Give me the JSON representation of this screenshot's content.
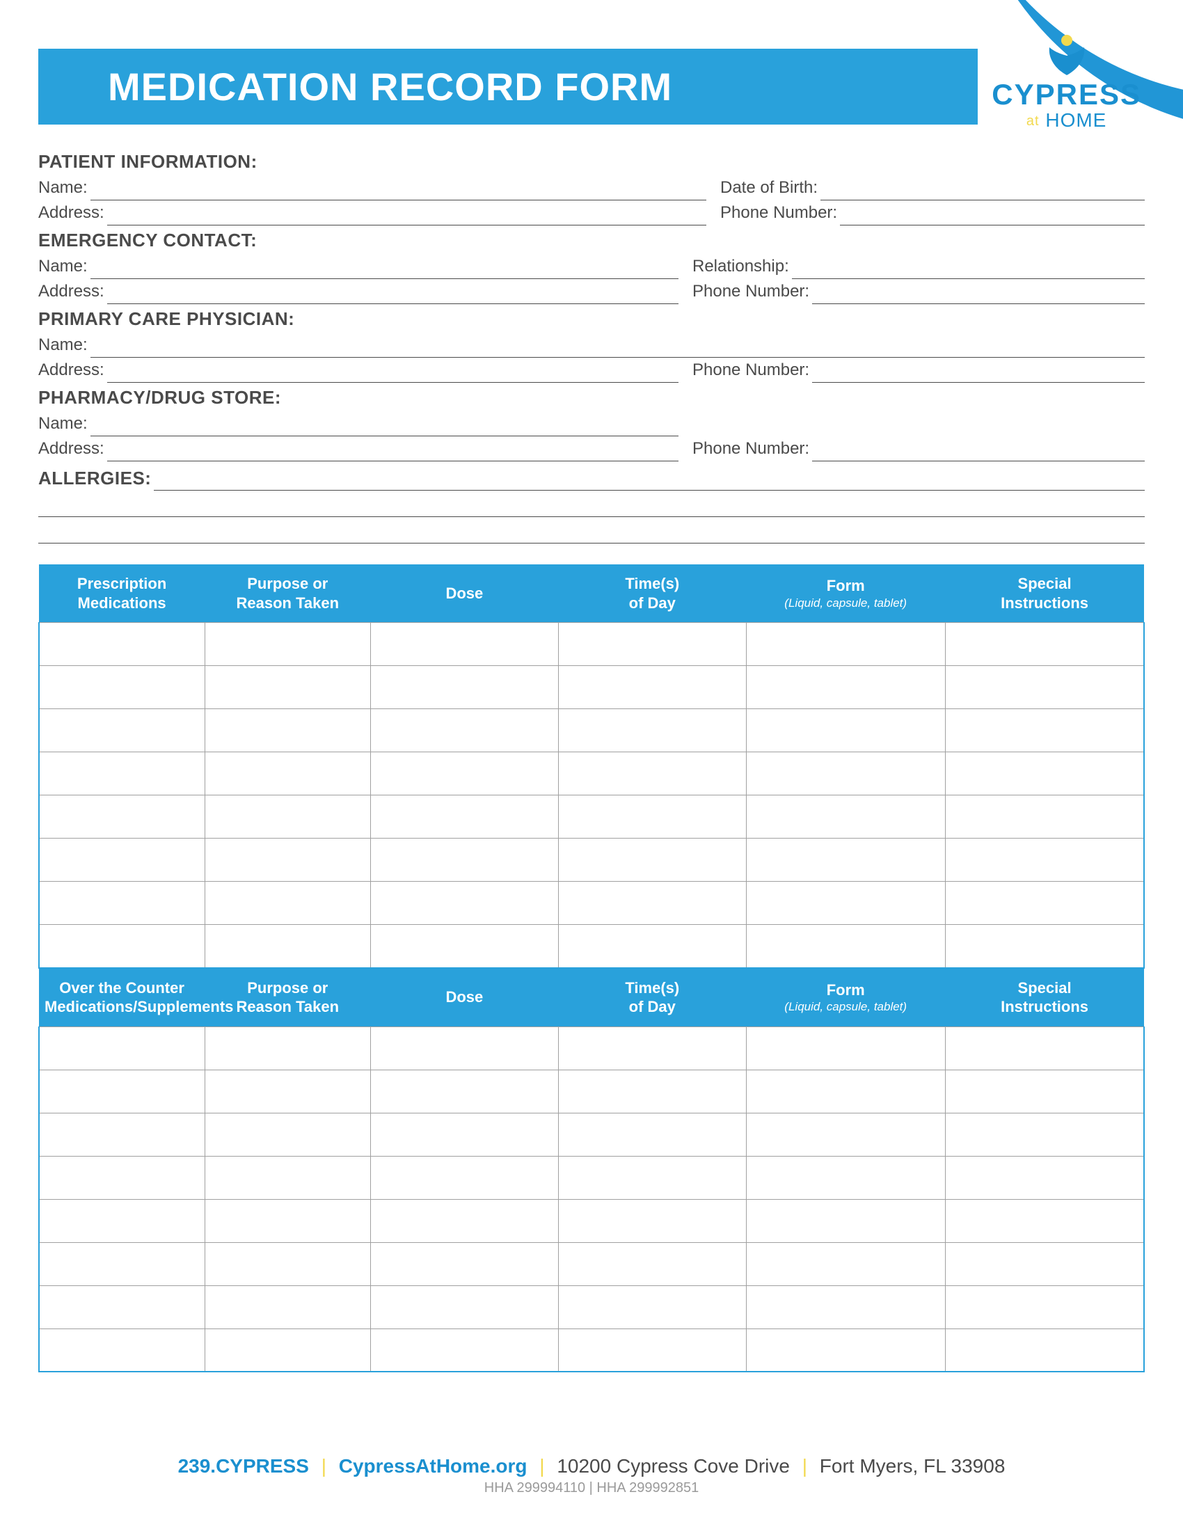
{
  "colors": {
    "primary_blue": "#29a1db",
    "logo_blue": "#1a8fcf",
    "accent_yellow": "#f2e679",
    "sep_yellow": "#f2d94e",
    "text_gray": "#4a4a4a",
    "border_gray": "#a0a0a0",
    "footer_gray": "#9a9a9a",
    "white": "#ffffff"
  },
  "title": "MEDICATION RECORD FORM",
  "logo": {
    "main": "CYPRESS",
    "sub_prefix": "at",
    "sub": "HOME"
  },
  "sections": {
    "patient": {
      "heading": "PATIENT INFORMATION:",
      "name_label": "Name:",
      "dob_label": "Date of Birth:",
      "address_label": "Address:",
      "phone_label": "Phone Number:"
    },
    "emergency": {
      "heading": "EMERGENCY CONTACT:",
      "name_label": "Name:",
      "relationship_label": "Relationship:",
      "address_label": "Address:",
      "phone_label": "Phone Number:"
    },
    "physician": {
      "heading": "PRIMARY CARE PHYSICIAN:",
      "name_label": "Name:",
      "address_label": "Address:",
      "phone_label": "Phone Number:"
    },
    "pharmacy": {
      "heading": "PHARMACY/DRUG STORE:",
      "name_label": "Name:",
      "address_label": "Address:",
      "phone_label": "Phone Number:"
    },
    "allergies": {
      "heading": "ALLERGIES:"
    }
  },
  "tables": {
    "prescription": {
      "row_count": 8,
      "columns": [
        {
          "line1": "Prescription",
          "line2": "Medications",
          "width": "15%"
        },
        {
          "line1": "Purpose or",
          "line2": "Reason Taken",
          "width": "15%"
        },
        {
          "line1": "Dose",
          "line2": "",
          "width": "17%"
        },
        {
          "line1": "Time(s)",
          "line2": "of Day",
          "width": "17%"
        },
        {
          "line1": "Form",
          "line2": "",
          "sub": "(Liquid, capsule, tablet)",
          "width": "18%"
        },
        {
          "line1": "Special",
          "line2": "Instructions",
          "width": "18%"
        }
      ]
    },
    "otc": {
      "row_count": 8,
      "columns": [
        {
          "line1": "Over the Counter",
          "line2": "Medications/Supplements",
          "width": "15%"
        },
        {
          "line1": "Purpose or",
          "line2": "Reason Taken",
          "width": "15%"
        },
        {
          "line1": "Dose",
          "line2": "",
          "width": "17%"
        },
        {
          "line1": "Time(s)",
          "line2": "of Day",
          "width": "17%"
        },
        {
          "line1": "Form",
          "line2": "",
          "sub": "(Liquid, capsule, tablet)",
          "width": "18%"
        },
        {
          "line1": "Special",
          "line2": "Instructions",
          "width": "18%"
        }
      ]
    }
  },
  "footer": {
    "phone": "239.CYPRESS",
    "website": "CypressAtHome.org",
    "street": "10200 Cypress Cove Drive",
    "city": "Fort Myers, FL 33908",
    "license": "HHA 299994110 | HHA 299992851"
  }
}
